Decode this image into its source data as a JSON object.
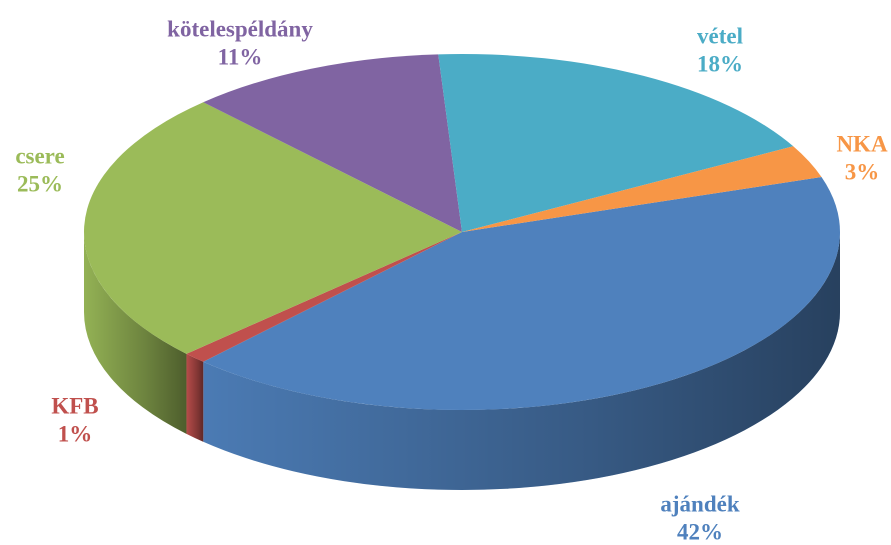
{
  "chart_data": {
    "type": "pie3d",
    "categories": [
      "ajándék",
      "KFB",
      "csere",
      "kötelespéldány",
      "vétel",
      "NKA"
    ],
    "values": [
      42,
      1,
      25,
      11,
      18,
      3
    ],
    "value_labels": [
      "42%",
      "1%",
      "25%",
      "11%",
      "18%",
      "3%"
    ],
    "colors": [
      "#4f81bd",
      "#c0504d",
      "#9bbb59",
      "#8064a2",
      "#4bacc6",
      "#f79646"
    ]
  }
}
